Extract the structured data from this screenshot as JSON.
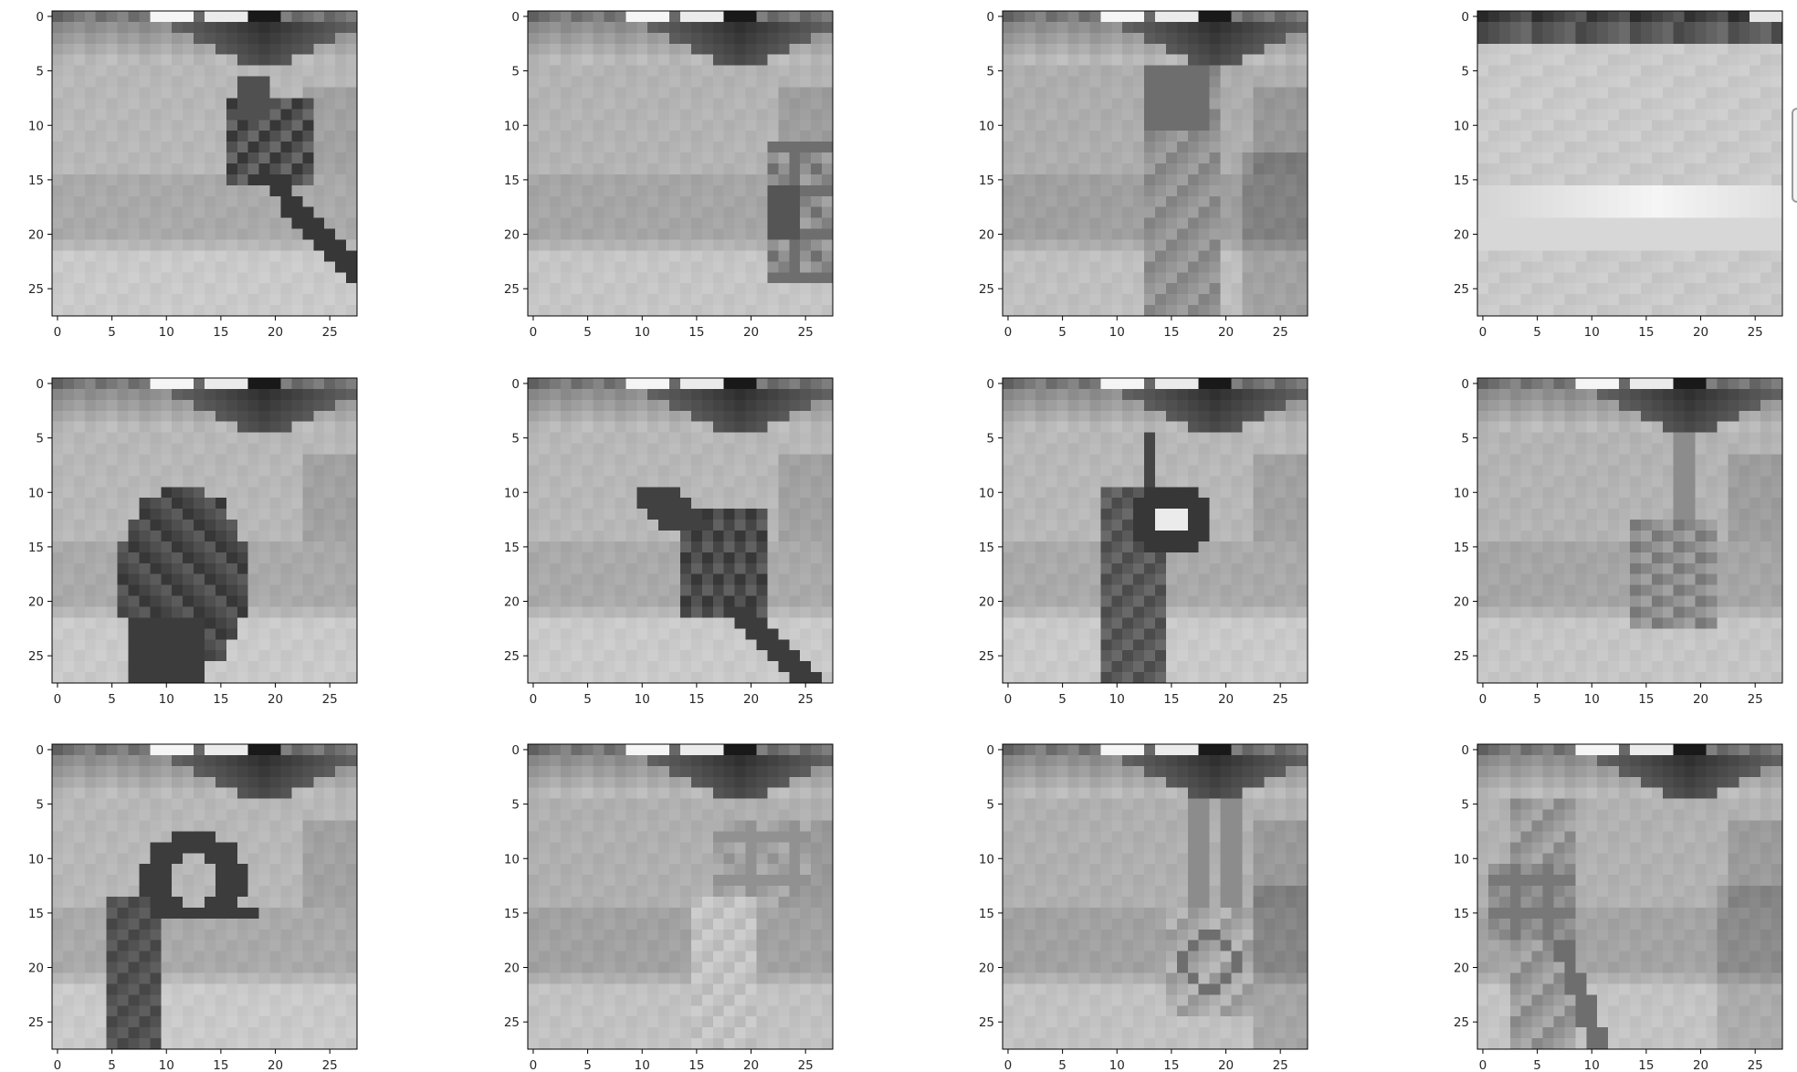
{
  "chart_data": {
    "type": "heatmap",
    "colormap": "gray",
    "image_size": [
      28,
      28
    ],
    "xlim": [
      -0.5,
      27.5
    ],
    "ylim": [
      27.5,
      -0.5
    ],
    "x_ticks": [
      0,
      5,
      10,
      15,
      20,
      25
    ],
    "y_ticks": [
      0,
      5,
      10,
      15,
      20,
      25
    ],
    "x_tick_labels": [
      "0",
      "5",
      "10",
      "15",
      "20",
      "25"
    ],
    "y_tick_labels": [
      "0",
      "5",
      "10",
      "15",
      "20",
      "25"
    ],
    "grid": false,
    "title": "",
    "xlabel": "",
    "ylabel": "",
    "subplot_grid": [
      3,
      4
    ],
    "panels": [
      {
        "row": 0,
        "col": 0,
        "subject": "hand with crossed fingers lower center-right"
      },
      {
        "row": 0,
        "col": 1,
        "subject": "small hand at lower right edge"
      },
      {
        "row": 0,
        "col": 2,
        "subject": "raised forearm in center"
      },
      {
        "row": 0,
        "col": 3,
        "subject": "empty background with bright horizontal band"
      },
      {
        "row": 1,
        "col": 0,
        "subject": "closed fist lower left"
      },
      {
        "row": 1,
        "col": 1,
        "subject": "pointing index finger center"
      },
      {
        "row": 1,
        "col": 2,
        "subject": "OK-style hand gesture"
      },
      {
        "row": 1,
        "col": 3,
        "subject": "faint hand lower right"
      },
      {
        "row": 2,
        "col": 0,
        "subject": "C-shaped hand lower left"
      },
      {
        "row": 2,
        "col": 1,
        "subject": "faint raised hand center-right"
      },
      {
        "row": 2,
        "col": 2,
        "subject": "faint two-finger hand center-right"
      },
      {
        "row": 2,
        "col": 3,
        "subject": "faint hand on left side"
      }
    ]
  }
}
